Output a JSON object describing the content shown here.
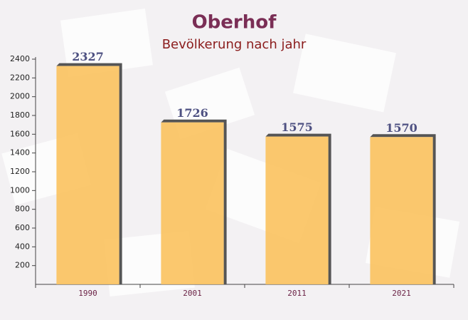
{
  "chart_data": {
    "type": "bar",
    "title": "Oberhof",
    "subtitle": "Bevölkerung nach jahr",
    "categories": [
      "1990",
      "2001",
      "2011",
      "2021"
    ],
    "values": [
      2327,
      1726,
      1575,
      1570
    ],
    "color": "#fbc25e",
    "ylim": [
      0,
      2400
    ],
    "yticks": [
      200,
      400,
      600,
      800,
      1000,
      1200,
      1400,
      1600,
      1800,
      2000,
      2200,
      2400
    ]
  }
}
